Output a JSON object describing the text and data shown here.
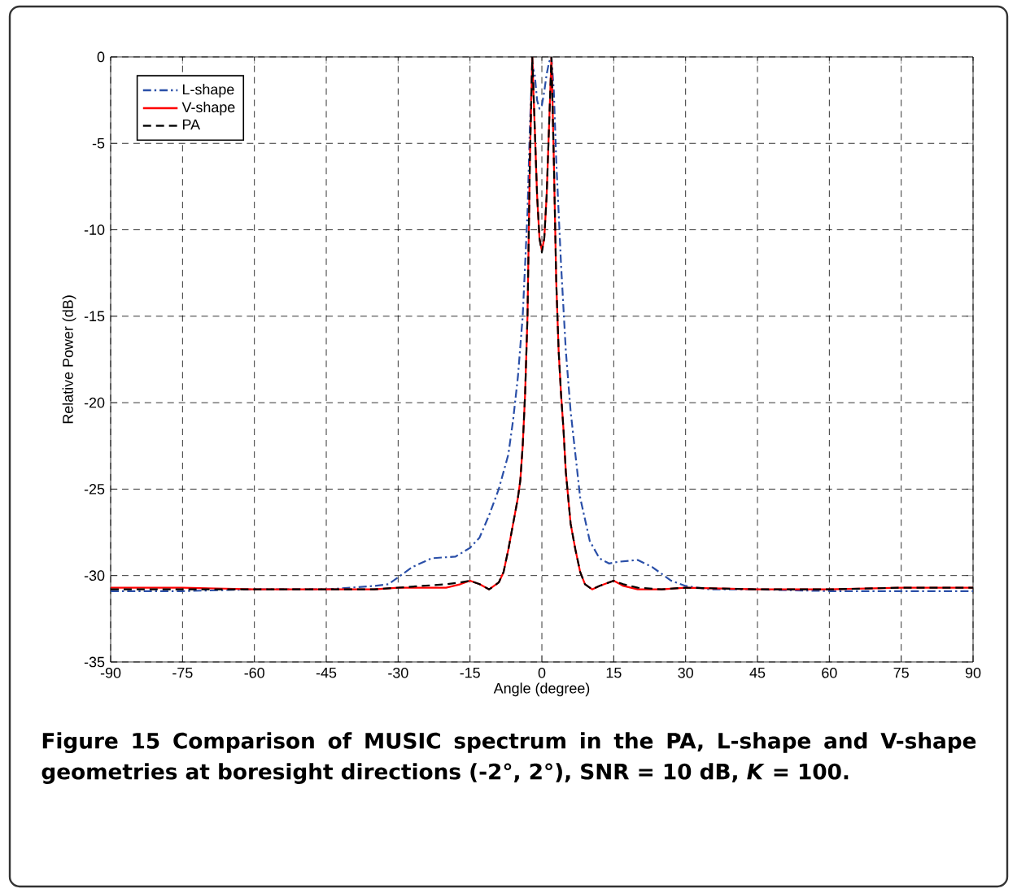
{
  "chart_data": {
    "type": "line",
    "xlabel": "Angle (degree)",
    "ylabel": "Relative Power (dB)",
    "xlim": [
      -90,
      90
    ],
    "xticks": [
      -90,
      -75,
      -60,
      -45,
      -30,
      -15,
      0,
      15,
      30,
      45,
      60,
      75,
      90
    ],
    "ylim": [
      -35,
      0
    ],
    "yticks": [
      -35,
      -30,
      -25,
      -20,
      -15,
      -10,
      -5,
      0
    ],
    "grid": true,
    "legend": "top left",
    "annotations": [
      "**Figure 15** Comparison of MUSIC spectrum in the PA, L-shape and V-shape geometries at boresight directions (-2°, 2°), SNR = 10 dB, *K* = 100."
    ],
    "series": [
      {
        "name": "L-shape",
        "color": "#2a4fa8",
        "line_style": "dashdot",
        "x": [
          -90,
          -75,
          -60,
          -45,
          -35,
          -32,
          -30,
          -27,
          -23,
          -18,
          -15,
          -13,
          -11,
          -9,
          -7,
          -6,
          -5,
          -4,
          -3.5,
          -3,
          -2.5,
          -2,
          -1.5,
          -1,
          -0.5,
          0,
          0.5,
          1,
          1.5,
          2,
          2.5,
          3,
          4,
          5,
          6,
          7,
          8,
          10,
          12,
          14,
          16,
          20,
          23,
          27,
          30,
          35,
          45,
          60,
          75,
          90
        ],
        "values": [
          -30.9,
          -30.9,
          -30.8,
          -30.8,
          -30.6,
          -30.5,
          -30.1,
          -29.5,
          -29.0,
          -28.9,
          -28.4,
          -27.8,
          -26.5,
          -25.0,
          -23.0,
          -21.0,
          -18.5,
          -15.0,
          -12.0,
          -9.0,
          -4.0,
          -0.5,
          -1.0,
          -2.5,
          -3.0,
          -2.8,
          -2.0,
          -1.0,
          -0.3,
          0,
          -2.0,
          -6.0,
          -12.0,
          -17.0,
          -20.5,
          -23.0,
          -25.5,
          -28.0,
          -29.0,
          -29.3,
          -29.2,
          -29.1,
          -29.5,
          -30.3,
          -30.6,
          -30.8,
          -30.8,
          -30.9,
          -30.9,
          -30.9
        ]
      },
      {
        "name": "V-shape",
        "color": "#ff0000",
        "line_style": "solid",
        "x": [
          -90,
          -75,
          -60,
          -45,
          -35,
          -30,
          -25,
          -20,
          -17,
          -15,
          -13,
          -11,
          -9,
          -8,
          -7,
          -6,
          -5,
          -4.5,
          -4,
          -3.5,
          -3,
          -2.5,
          -2,
          -1.5,
          -1,
          -0.5,
          0,
          0.5,
          1,
          1.5,
          2,
          2.5,
          3,
          3.5,
          4,
          4.5,
          5,
          5.5,
          6,
          7,
          8,
          9,
          10.5,
          12,
          15,
          17,
          20,
          25,
          30,
          45,
          60,
          75,
          90
        ],
        "values": [
          -30.7,
          -30.7,
          -30.8,
          -30.8,
          -30.8,
          -30.7,
          -30.7,
          -30.7,
          -30.5,
          -30.3,
          -30.5,
          -30.8,
          -30.4,
          -29.8,
          -28.5,
          -27.0,
          -25.5,
          -24.5,
          -22.5,
          -19.5,
          -15.0,
          -6.0,
          0,
          -4.0,
          -8.0,
          -10.5,
          -11.2,
          -10.5,
          -8.0,
          -4.0,
          0,
          -6.0,
          -13.0,
          -17.0,
          -19.5,
          -21.5,
          -24.0,
          -25.5,
          -27.0,
          -28.5,
          -29.8,
          -30.5,
          -30.8,
          -30.6,
          -30.3,
          -30.6,
          -30.8,
          -30.8,
          -30.7,
          -30.8,
          -30.8,
          -30.7,
          -30.7
        ]
      },
      {
        "name": "PA",
        "color": "#000000",
        "line_style": "dashed",
        "x": [
          -90,
          -75,
          -60,
          -45,
          -35,
          -30,
          -25,
          -20,
          -17,
          -15,
          -13,
          -11,
          -9,
          -8,
          -7,
          -6,
          -5,
          -4.5,
          -4,
          -3.5,
          -3,
          -2.5,
          -2,
          -1.5,
          -1,
          -0.5,
          0,
          0.5,
          1,
          1.5,
          2,
          2.5,
          3,
          3.5,
          4,
          4.5,
          5,
          5.5,
          6,
          7,
          8,
          9,
          10.5,
          12,
          15,
          17,
          20,
          25,
          30,
          45,
          60,
          75,
          90
        ],
        "values": [
          -30.8,
          -30.8,
          -30.8,
          -30.8,
          -30.8,
          -30.7,
          -30.6,
          -30.5,
          -30.4,
          -30.3,
          -30.5,
          -30.8,
          -30.4,
          -29.8,
          -28.5,
          -27.0,
          -25.5,
          -24.5,
          -22.5,
          -19.5,
          -15.0,
          -6.0,
          0,
          -4.0,
          -8.0,
          -10.5,
          -11.3,
          -10.5,
          -8.0,
          -4.0,
          0,
          -6.0,
          -13.0,
          -17.0,
          -19.5,
          -21.5,
          -24.0,
          -25.5,
          -27.0,
          -28.5,
          -29.8,
          -30.5,
          -30.8,
          -30.6,
          -30.3,
          -30.5,
          -30.7,
          -30.8,
          -30.7,
          -30.8,
          -30.8,
          -30.7,
          -30.7
        ]
      }
    ]
  }
}
